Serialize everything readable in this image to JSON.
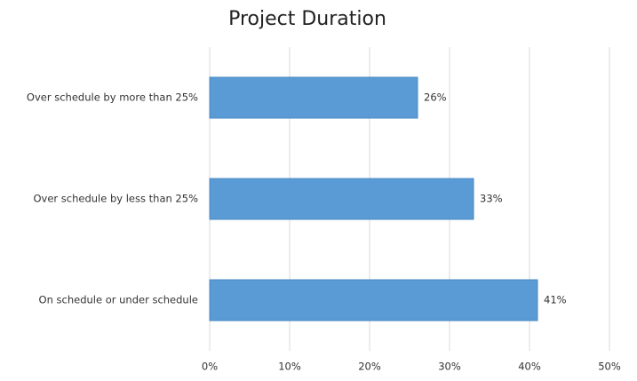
{
  "chart_data": {
    "type": "bar",
    "title": "Project Duration",
    "categories": [
      "Over schedule by more than 25%",
      "Over schedule by less than 25%",
      "On schedule or under schedule"
    ],
    "values": [
      26,
      33,
      41
    ],
    "value_labels": [
      "26%",
      "33%",
      "41%"
    ],
    "color": "#5b9bd5",
    "xlim": [
      0,
      50
    ],
    "xticks": [
      {
        "value": 0,
        "label": "0%"
      },
      {
        "value": 10,
        "label": "10%"
      },
      {
        "value": 20,
        "label": "20%"
      },
      {
        "value": 30,
        "label": "30%"
      },
      {
        "value": 40,
        "label": "40%"
      },
      {
        "value": 50,
        "label": "50%"
      }
    ],
    "grid": true
  }
}
